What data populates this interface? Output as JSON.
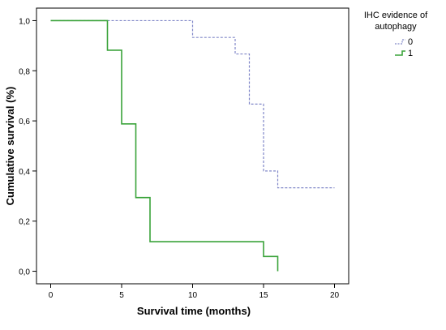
{
  "chart_data": {
    "type": "line",
    "title": "",
    "xlabel": "Survival time (months)",
    "ylabel": "Cumulative survival (%)",
    "xlim": [
      -1,
      21
    ],
    "ylim": [
      -0.05,
      1.05
    ],
    "x_ticks": [
      0,
      5,
      10,
      15,
      20
    ],
    "x_tick_labels": [
      "0",
      "5",
      "10",
      "15",
      "20"
    ],
    "y_ticks": [
      0.0,
      0.2,
      0.4,
      0.6,
      0.8,
      1.0
    ],
    "y_tick_labels": [
      "0,0",
      "0,2",
      "0,4",
      "0,6",
      "0,8",
      "1,0"
    ],
    "grid": false,
    "step": true,
    "legend": {
      "title_line1": "IHC evidence of",
      "title_line2": "autophagy",
      "placement": "top-right-outside"
    },
    "series": [
      {
        "name": "0",
        "color": "#8087c8",
        "dash": true,
        "x": [
          0,
          10,
          13,
          14,
          15,
          16,
          20
        ],
        "y": [
          1.0,
          0.933,
          0.867,
          0.667,
          0.4,
          0.333,
          0.333
        ]
      },
      {
        "name": "1",
        "color": "#3aa33a",
        "dash": false,
        "x": [
          0,
          4,
          5,
          6,
          7,
          15,
          16,
          16
        ],
        "y": [
          1.0,
          0.882,
          0.588,
          0.294,
          0.118,
          0.059,
          0.059,
          0.0
        ]
      }
    ]
  }
}
